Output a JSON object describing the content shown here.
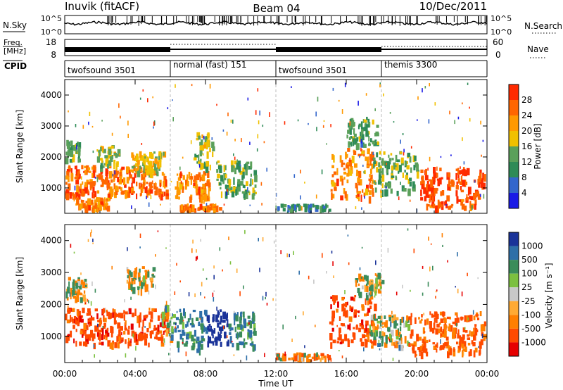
{
  "header": {
    "station": "Inuvik (fitACF)",
    "beam": "Beam 04",
    "date": "10/Dec/2011"
  },
  "sky_panel": {
    "left_label": "N.Sky",
    "right_label": "N.Search",
    "left_ticks": [
      "10^5",
      "10^0"
    ],
    "right_ticks": [
      "10^5",
      "10^0"
    ]
  },
  "freq_panel": {
    "left_label_line1": "Freq.",
    "left_label_line2": "[MHz]",
    "right_label": "Nave",
    "left_ticks": [
      "18",
      "8"
    ],
    "right_ticks": [
      "60",
      "0"
    ]
  },
  "cpid_panel": {
    "label": "CPID",
    "modes": [
      {
        "name": "twofsound 3501",
        "start_h": 0,
        "end_h": 6
      },
      {
        "name": "normal (fast) 151",
        "start_h": 6,
        "end_h": 12
      },
      {
        "name": "twofsound 3501",
        "start_h": 12,
        "end_h": 18
      },
      {
        "name": "themis 3300",
        "start_h": 18,
        "end_h": 24
      }
    ]
  },
  "power_panel": {
    "ylabel": "Slant Range [km]",
    "yticks": [
      "1000",
      "2000",
      "3000",
      "4000"
    ],
    "colorbar_label": "Power [dB]",
    "colorbar_ticks": [
      "4",
      "8",
      "12",
      "16",
      "20",
      "24",
      "28"
    ],
    "colorbar_colors": [
      "#1a1ae6",
      "#3366cc",
      "#2e8b57",
      "#5aa05a",
      "#f0c000",
      "#ff9900",
      "#ff6600",
      "#ff2a00"
    ]
  },
  "velocity_panel": {
    "ylabel": "Slant Range [km]",
    "yticks": [
      "1000",
      "2000",
      "3000",
      "4000"
    ],
    "colorbar_label": "Velocity [m s⁻¹]",
    "colorbar_ticks": [
      "1000",
      "500",
      "100",
      "25",
      "-25",
      "-100",
      "-500",
      "-1000"
    ],
    "colorbar_colors": [
      "#1a3399",
      "#2e6fa8",
      "#3a8c5a",
      "#7cc040",
      "#c8c8c8",
      "#ffaa33",
      "#ff7f00",
      "#ff4a00",
      "#e60000"
    ]
  },
  "xaxis": {
    "label": "Time UT",
    "ticks": [
      "00:00",
      "04:00",
      "08:00",
      "12:00",
      "16:00",
      "20:00",
      "00:00"
    ]
  },
  "chart_data": [
    {
      "type": "heatmap",
      "title": "Power",
      "xlabel": "Time UT",
      "ylabel": "Slant Range [km]",
      "xlim": [
        0,
        24
      ],
      "ylim": [
        180,
        4500
      ],
      "zlabel": "Power [dB]",
      "zlim": [
        0,
        32
      ],
      "blobs": [
        {
          "t0": 0.0,
          "t1": 5.8,
          "r0": 800,
          "r1": 1750,
          "z": 26
        },
        {
          "t0": 0.6,
          "t1": 2.4,
          "r0": 300,
          "r1": 700,
          "z": 24
        },
        {
          "t0": 0.0,
          "t1": 0.8,
          "r0": 1900,
          "r1": 2600,
          "z": 14
        },
        {
          "t0": 1.8,
          "t1": 3.0,
          "r0": 1700,
          "r1": 2400,
          "z": 16
        },
        {
          "t0": 3.7,
          "t1": 5.6,
          "r0": 1500,
          "r1": 2200,
          "z": 18
        },
        {
          "t0": 6.2,
          "t1": 8.2,
          "r0": 700,
          "r1": 1550,
          "z": 24
        },
        {
          "t0": 7.3,
          "t1": 8.4,
          "r0": 1700,
          "r1": 2800,
          "z": 16
        },
        {
          "t0": 8.6,
          "t1": 10.8,
          "r0": 800,
          "r1": 1900,
          "z": 14
        },
        {
          "t0": 6.5,
          "t1": 8.8,
          "r0": 250,
          "r1": 500,
          "z": 26
        },
        {
          "t0": 15.1,
          "t1": 17.6,
          "r0": 700,
          "r1": 2300,
          "z": 24
        },
        {
          "t0": 16.0,
          "t1": 17.8,
          "r0": 2400,
          "r1": 3300,
          "z": 12
        },
        {
          "t0": 17.5,
          "t1": 20.0,
          "r0": 900,
          "r1": 2200,
          "z": 14
        },
        {
          "t0": 20.2,
          "t1": 23.9,
          "r0": 400,
          "r1": 1700,
          "z": 28
        },
        {
          "t0": 12.0,
          "t1": 15.0,
          "r0": 180,
          "r1": 500,
          "z": 10
        }
      ]
    },
    {
      "type": "heatmap",
      "title": "Velocity",
      "xlabel": "Time UT",
      "ylabel": "Slant Range [km]",
      "xlim": [
        0,
        24
      ],
      "ylim": [
        180,
        4500
      ],
      "zlabel": "Velocity [m s⁻¹]",
      "zlim": [
        -1000,
        1000
      ],
      "blobs": [
        {
          "t0": 0.0,
          "t1": 5.8,
          "r0": 800,
          "r1": 1900,
          "z": -500
        },
        {
          "t0": 0.0,
          "t1": 1.2,
          "r0": 2200,
          "r1": 2900,
          "z": 0
        },
        {
          "t0": 3.5,
          "t1": 5.0,
          "r0": 2500,
          "r1": 3200,
          "z": 0
        },
        {
          "t0": 5.5,
          "t1": 6.3,
          "r0": 1000,
          "r1": 2000,
          "z": 100
        },
        {
          "t0": 6.3,
          "t1": 8.0,
          "r0": 600,
          "r1": 1900,
          "z": 300
        },
        {
          "t0": 8.0,
          "t1": 9.3,
          "r0": 800,
          "r1": 1900,
          "z": 1000
        },
        {
          "t0": 9.3,
          "t1": 10.8,
          "r0": 700,
          "r1": 1800,
          "z": 300
        },
        {
          "t0": 15.0,
          "t1": 17.6,
          "r0": 800,
          "r1": 2300,
          "z": -500
        },
        {
          "t0": 16.5,
          "t1": 18.0,
          "r0": 2200,
          "r1": 3000,
          "z": 0
        },
        {
          "t0": 17.3,
          "t1": 19.5,
          "r0": 700,
          "r1": 1700,
          "z": 80
        },
        {
          "t0": 19.5,
          "t1": 23.9,
          "r0": 500,
          "r1": 1800,
          "z": -400
        },
        {
          "t0": 12.0,
          "t1": 15.0,
          "r0": 180,
          "r1": 500,
          "z": -200
        }
      ]
    }
  ]
}
